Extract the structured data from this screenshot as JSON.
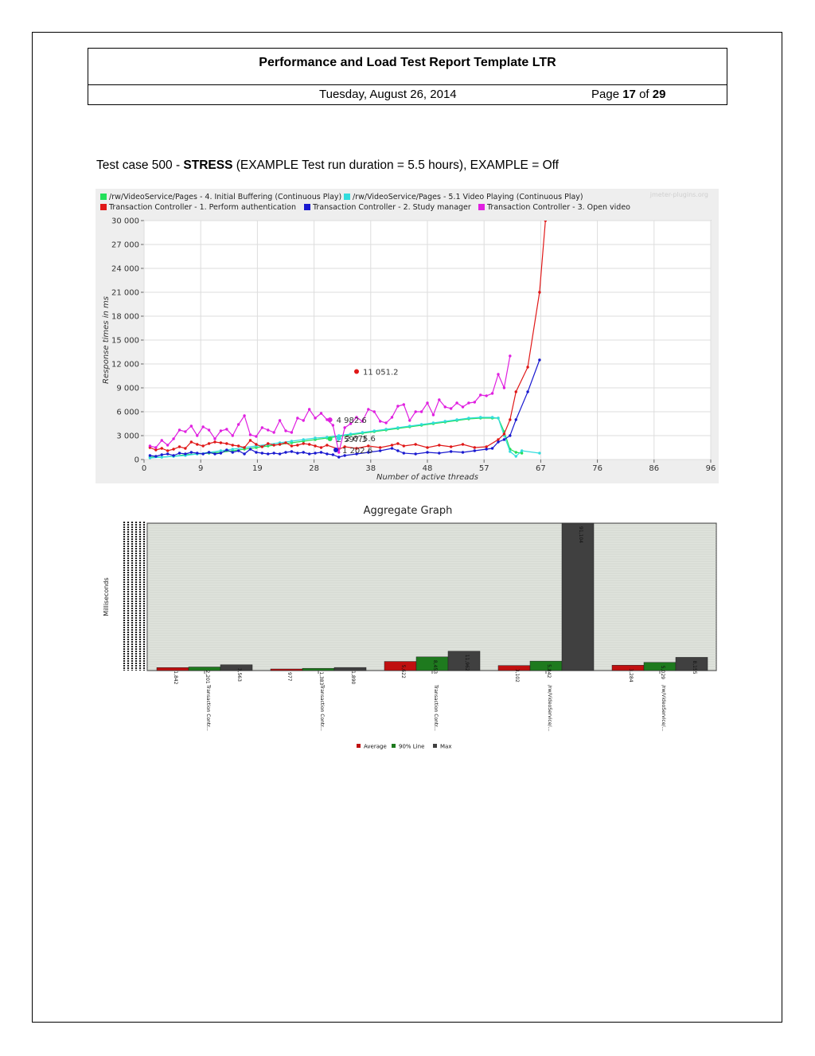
{
  "header": {
    "title": "Performance and Load Test Report Template LTR",
    "date": "Tuesday, August 26, 2014",
    "page_prefix": "Page",
    "page_current": "17",
    "page_of": "of",
    "page_total": "29"
  },
  "caption": {
    "prefix": "Test case 500 - ",
    "bold": "STRESS",
    "suffix": " (EXAMPLE Test run duration = 5.5 hours), EXAMPLE = Off"
  },
  "chart_data": [
    {
      "type": "line",
      "watermark": "jmeter-plugins.org",
      "xlabel": "Number of active threads",
      "ylabel": "Response times in ms",
      "xlim": [
        0,
        96
      ],
      "ylim": [
        0,
        30000
      ],
      "xticks": [
        "0",
        "9",
        "19",
        "28",
        "38",
        "48",
        "57",
        "67",
        "76",
        "86",
        "96"
      ],
      "yticks": [
        "0",
        "3 000",
        "6 000",
        "9 000",
        "12 000",
        "15 000",
        "18 000",
        "21 000",
        "24 000",
        "27 000",
        "30 000"
      ],
      "grid": true,
      "legend_position": "top",
      "colors": {
        "green": "#22e05a",
        "cyan": "#33dddd",
        "red": "#e01818",
        "blue": "#1a1ad0",
        "magenta": "#e020e0"
      },
      "series": [
        {
          "name": "/rw/VideoService/Pages - 4. Initial Buffering (Continuous Play)",
          "color": "#22e05a",
          "points": [
            [
              1,
              300
            ],
            [
              3,
              300
            ],
            [
              5,
              400
            ],
            [
              7,
              600
            ],
            [
              9,
              700
            ],
            [
              11,
              800
            ],
            [
              13,
              900
            ],
            [
              15,
              1100
            ],
            [
              17,
              1300
            ],
            [
              19,
              1500
            ],
            [
              21,
              1700
            ],
            [
              23,
              1900
            ],
            [
              25,
              2100
            ],
            [
              27,
              2300
            ],
            [
              29,
              2500
            ],
            [
              31,
              2700
            ],
            [
              33,
              2900
            ],
            [
              35,
              3100
            ],
            [
              37,
              3300
            ],
            [
              39,
              3500
            ],
            [
              41,
              3700
            ],
            [
              43,
              3900
            ],
            [
              45,
              4100
            ],
            [
              47,
              4300
            ],
            [
              49,
              4500
            ],
            [
              51,
              4700
            ],
            [
              53,
              4900
            ],
            [
              55,
              5100
            ],
            [
              57,
              5200
            ],
            [
              59,
              5200
            ],
            [
              60,
              5200
            ],
            [
              61,
              3500
            ],
            [
              62,
              1300
            ],
            [
              63,
              900
            ],
            [
              64,
              800
            ]
          ]
        },
        {
          "name": "/rw/VideoService/Pages - 5.1 Video Playing (Continuous Play)",
          "color": "#33dddd",
          "points": [
            [
              1,
              200
            ],
            [
              3,
              300
            ],
            [
              5,
              400
            ],
            [
              7,
              500
            ],
            [
              9,
              700
            ],
            [
              11,
              900
            ],
            [
              13,
              1100
            ],
            [
              15,
              1300
            ],
            [
              17,
              1500
            ],
            [
              19,
              1700
            ],
            [
              21,
              1900
            ],
            [
              23,
              2100
            ],
            [
              25,
              2300
            ],
            [
              27,
              2500
            ],
            [
              29,
              2700
            ],
            [
              31,
              2800
            ],
            [
              33,
              3000
            ],
            [
              35,
              3200
            ],
            [
              37,
              3400
            ],
            [
              39,
              3600
            ],
            [
              41,
              3800
            ],
            [
              43,
              4000
            ],
            [
              45,
              4200
            ],
            [
              47,
              4400
            ],
            [
              49,
              4600
            ],
            [
              51,
              4800
            ],
            [
              53,
              5000
            ],
            [
              55,
              5200
            ],
            [
              57,
              5300
            ],
            [
              59,
              5300
            ],
            [
              60,
              5200
            ],
            [
              61,
              3000
            ],
            [
              62,
              1000
            ],
            [
              63,
              400
            ],
            [
              64,
              1100
            ],
            [
              67,
              800
            ]
          ]
        },
        {
          "name": "Transaction Controller - 1. Perform authentication",
          "color": "#e01818",
          "points": [
            [
              1,
              1500
            ],
            [
              2,
              1200
            ],
            [
              3,
              1400
            ],
            [
              4,
              1100
            ],
            [
              5,
              1300
            ],
            [
              6,
              1600
            ],
            [
              7,
              1400
            ],
            [
              8,
              2200
            ],
            [
              9,
              1900
            ],
            [
              10,
              1700
            ],
            [
              11,
              2000
            ],
            [
              12,
              2200
            ],
            [
              13,
              2100
            ],
            [
              14,
              2000
            ],
            [
              15,
              1800
            ],
            [
              16,
              1700
            ],
            [
              17,
              1500
            ],
            [
              18,
              2400
            ],
            [
              19,
              1900
            ],
            [
              20,
              1600
            ],
            [
              21,
              2000
            ],
            [
              22,
              1800
            ],
            [
              23,
              1900
            ],
            [
              24,
              2100
            ],
            [
              25,
              1700
            ],
            [
              26,
              1800
            ],
            [
              27,
              2000
            ],
            [
              28,
              1900
            ],
            [
              29,
              1700
            ],
            [
              30,
              1500
            ],
            [
              31,
              1800
            ],
            [
              33,
              1300
            ],
            [
              34,
              1600
            ],
            [
              36,
              1400
            ],
            [
              38,
              1700
            ],
            [
              40,
              1500
            ],
            [
              42,
              1800
            ],
            [
              43,
              2000
            ],
            [
              44,
              1700
            ],
            [
              46,
              1900
            ],
            [
              48,
              1500
            ],
            [
              50,
              1800
            ],
            [
              52,
              1600
            ],
            [
              54,
              1900
            ],
            [
              56,
              1500
            ],
            [
              58,
              1600
            ],
            [
              60,
              2500
            ],
            [
              61,
              3200
            ],
            [
              62,
              5000
            ],
            [
              63,
              8500
            ],
            [
              65,
              11600
            ],
            [
              67,
              21000
            ],
            [
              68,
              30000
            ]
          ]
        },
        {
          "name": "Transaction Controller - 2. Study manager",
          "color": "#1a1ad0",
          "points": [
            [
              1,
              500
            ],
            [
              2,
              400
            ],
            [
              3,
              600
            ],
            [
              4,
              700
            ],
            [
              5,
              500
            ],
            [
              6,
              800
            ],
            [
              7,
              700
            ],
            [
              8,
              900
            ],
            [
              9,
              800
            ],
            [
              10,
              700
            ],
            [
              11,
              900
            ],
            [
              12,
              700
            ],
            [
              13,
              800
            ],
            [
              14,
              1200
            ],
            [
              15,
              900
            ],
            [
              16,
              1100
            ],
            [
              17,
              700
            ],
            [
              18,
              1300
            ],
            [
              19,
              900
            ],
            [
              20,
              800
            ],
            [
              21,
              700
            ],
            [
              22,
              800
            ],
            [
              23,
              700
            ],
            [
              24,
              900
            ],
            [
              25,
              1000
            ],
            [
              26,
              800
            ],
            [
              27,
              900
            ],
            [
              28,
              700
            ],
            [
              29,
              800
            ],
            [
              30,
              900
            ],
            [
              31,
              700
            ],
            [
              32,
              600
            ],
            [
              33,
              300
            ],
            [
              34,
              500
            ],
            [
              36,
              700
            ],
            [
              38,
              900
            ],
            [
              40,
              1100
            ],
            [
              42,
              1400
            ],
            [
              43,
              1100
            ],
            [
              44,
              800
            ],
            [
              46,
              700
            ],
            [
              48,
              900
            ],
            [
              50,
              800
            ],
            [
              52,
              1000
            ],
            [
              54,
              900
            ],
            [
              56,
              1100
            ],
            [
              58,
              1300
            ],
            [
              59,
              1400
            ],
            [
              60,
              2200
            ],
            [
              61,
              2500
            ],
            [
              62,
              3000
            ],
            [
              63,
              5000
            ],
            [
              65,
              8500
            ],
            [
              67,
              12500
            ]
          ]
        },
        {
          "name": "Transaction Controller - 3. Open video",
          "color": "#e020e0",
          "points": [
            [
              1,
              1700
            ],
            [
              2,
              1500
            ],
            [
              3,
              2400
            ],
            [
              4,
              1800
            ],
            [
              5,
              2600
            ],
            [
              6,
              3700
            ],
            [
              7,
              3500
            ],
            [
              8,
              4200
            ],
            [
              9,
              3000
            ],
            [
              10,
              4100
            ],
            [
              11,
              3700
            ],
            [
              12,
              2600
            ],
            [
              13,
              3600
            ],
            [
              14,
              3800
            ],
            [
              15,
              3000
            ],
            [
              16,
              4400
            ],
            [
              17,
              5500
            ],
            [
              18,
              3100
            ],
            [
              19,
              2900
            ],
            [
              20,
              4000
            ],
            [
              21,
              3700
            ],
            [
              22,
              3400
            ],
            [
              23,
              4900
            ],
            [
              24,
              3600
            ],
            [
              25,
              3400
            ],
            [
              26,
              5200
            ],
            [
              27,
              4900
            ],
            [
              28,
              6300
            ],
            [
              29,
              5200
            ],
            [
              30,
              5800
            ],
            [
              31,
              5000
            ],
            [
              32,
              4300
            ],
            [
              33,
              900
            ],
            [
              34,
              4000
            ],
            [
              35,
              4500
            ],
            [
              36,
              5300
            ],
            [
              37,
              4800
            ],
            [
              38,
              6300
            ],
            [
              39,
              6000
            ],
            [
              40,
              4800
            ],
            [
              41,
              4600
            ],
            [
              42,
              5300
            ],
            [
              43,
              6700
            ],
            [
              44,
              6900
            ],
            [
              45,
              4900
            ],
            [
              46,
              6000
            ],
            [
              47,
              6000
            ],
            [
              48,
              7100
            ],
            [
              49,
              5600
            ],
            [
              50,
              7500
            ],
            [
              51,
              6600
            ],
            [
              52,
              6400
            ],
            [
              53,
              7100
            ],
            [
              54,
              6600
            ],
            [
              55,
              7100
            ],
            [
              56,
              7200
            ],
            [
              57,
              8100
            ],
            [
              58,
              8000
            ],
            [
              59,
              8300
            ],
            [
              60,
              10700
            ],
            [
              61,
              9000
            ],
            [
              62,
              13000
            ]
          ]
        }
      ],
      "annotations": [
        {
          "label": "11 051.2",
          "x": 36,
          "y": 11051.2,
          "color": "#e01818"
        },
        {
          "label": "4 982.6",
          "x": 31.5,
          "y": 4982.6,
          "color": "#e020e0"
        },
        {
          "label": "2 597.3",
          "x": 31.5,
          "y": 2597.3,
          "color": "#22e05a"
        },
        {
          "label": "2 675.6",
          "x": 33,
          "y": 2675.6,
          "color": "#33dddd"
        },
        {
          "label": "1 202.6",
          "x": 32.5,
          "y": 1202.6,
          "color": "#1a1ad0"
        }
      ]
    },
    {
      "type": "bar",
      "title": "Aggregate Graph",
      "ylabel": "Milliseconds",
      "ylim": [
        0,
        91104
      ],
      "categories": [
        "Transaction Contr...",
        "Transaction Contr...",
        "Transaction Contr...",
        "/rw/VideoService/...",
        "/rw/VideoService/..."
      ],
      "series": [
        {
          "name": "Average",
          "color": "#c01010",
          "values": [
            1842,
            977,
            5622,
            3102,
            3284
          ],
          "labels": [
            "1,842",
            "977",
            "5,622",
            "3,102",
            "3,284"
          ]
        },
        {
          "name": "90% Line",
          "color": "#1e7a1e",
          "values": [
            2201,
            1383,
            8453,
            5842,
            5029
          ],
          "labels": [
            "2,201",
            "1,383",
            "8,453",
            "5,842",
            "5,029"
          ]
        },
        {
          "name": "Max",
          "color": "#404040",
          "values": [
            3563,
            1890,
            11962,
            91104,
            8155
          ],
          "labels": [
            "3,563",
            "1,890",
            "11,962",
            "91,104",
            "8,155"
          ]
        }
      ],
      "legend_position": "bottom"
    }
  ]
}
